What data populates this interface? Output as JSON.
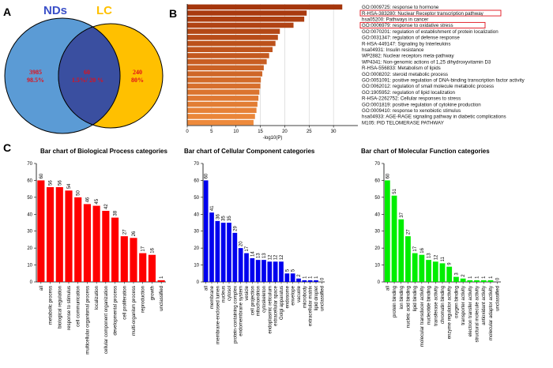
{
  "panels": [
    "A",
    "B",
    "C"
  ],
  "venn": {
    "left_title": "NDs",
    "right_title": "LC",
    "left_only": {
      "count": "3985",
      "percent": "98.5%"
    },
    "overlap": {
      "count": "60",
      "percent": "1.5%/ 20 %"
    },
    "right_only": {
      "count": "240",
      "percent": "80%"
    },
    "colors": {
      "left": "#5b9bd5",
      "right": "#ffc000",
      "overlap": "#3a4fa0",
      "title_left": "#3a4fc8",
      "title_right": "#ffc000",
      "numbers": "#e0101a"
    }
  },
  "chart_data": [
    {
      "id": "enrichment",
      "type": "bar",
      "orientation": "horizontal",
      "xlabel": "-log10(P)",
      "xlim": [
        0,
        35
      ],
      "xticks": [
        0,
        5,
        10,
        15,
        20,
        25,
        30
      ],
      "highlighted_indices": [
        1,
        3
      ],
      "colors": {
        "top": "#a5360c",
        "bottom": "#ee8a3c",
        "highlight_box": "#e0101a"
      },
      "categories": [
        "GO:0009725: response to hormone",
        "R-HSA-383280: Nuclear Receptor transcription pathway",
        "hsa05200: Pathways in cancer",
        "GO:0006979: response to oxidative stress",
        "GO:0070201: regulation of establishment of protein localization",
        "GO:0031347: regulation of defense response",
        "R-HSA-449147: Signaling by Interleukins",
        "hsa04931: Insulin resistance",
        "WP2882: Nuclear receptors meta-pathway",
        "WP4341: Non-genomic actions of 1,25 dihydroxyvitamin D3",
        "R-HSA-556833: Metabolism of lipids",
        "GO:0008202: steroid metabolic process",
        "GO:0051091: positive regulation of DNA-binding transcription factor activity",
        "GO:0062012: regulation of small molecule metabolic process",
        "GO:1905952: regulation of lipid localization",
        "R-HSA-2262752: Cellular responses to stress",
        "GO:0001819: positive regulation of cytokine production",
        "GO:0009410: response to xenobiotic stimulus",
        "hsa04933: AGE-RAGE signaling pathway in diabetic complications",
        "M105: PID TELOMERASE PATHWAY"
      ],
      "values": [
        31.8,
        24.5,
        24.0,
        21.8,
        19.0,
        18.6,
        18.1,
        17.5,
        16.8,
        16.3,
        15.7,
        15.4,
        15.1,
        15.0,
        14.8,
        14.6,
        14.4,
        14.2,
        13.9,
        13.6
      ]
    },
    {
      "id": "bp",
      "type": "bar",
      "title": "Bar chart of Biological Process categories",
      "color": "#ff0000",
      "ylim": [
        0,
        70
      ],
      "yticks": [
        0,
        10,
        20,
        30,
        40,
        50,
        60,
        70
      ],
      "categories": [
        "all",
        "metabolic process",
        "biological regulation",
        "response to stimulus",
        "cell communication",
        "multicellular organismal process",
        "localization",
        "cellular component organization",
        "developmental process",
        "cell proliferation",
        "multi-organism process",
        "reproduction",
        "growth",
        "unclassified"
      ],
      "values": [
        60,
        56,
        56,
        54,
        50,
        46,
        45,
        42,
        38,
        27,
        26,
        17,
        16,
        1
      ]
    },
    {
      "id": "cc",
      "type": "bar",
      "title": "Bar chart of Cellular Component categories",
      "color": "#0000ee",
      "ylim": [
        0,
        70
      ],
      "yticks": [
        0,
        10,
        20,
        30,
        40,
        50,
        60,
        70
      ],
      "categories": [
        "all",
        "membrane",
        "membrane-enclosed lumen",
        "nucleus",
        "cytosol",
        "protein-containing complex",
        "endomembrane system",
        "vesicle",
        "cell projection",
        "mitochondrion",
        "cytoskeleton",
        "endoplasmic reticulum",
        "extracellular space",
        "Golgi apparatus",
        "endosome",
        "envelope",
        "vacuole",
        "microbody",
        "extracellular matrix",
        "lipid droplet",
        "unclassified"
      ],
      "values": [
        60,
        41,
        36,
        35,
        35,
        29,
        20,
        17,
        14,
        13,
        13,
        12,
        12,
        12,
        5,
        5,
        2,
        1,
        1,
        1,
        0
      ]
    },
    {
      "id": "mf",
      "type": "bar",
      "title": "Bar chart of Molecular Function categories",
      "color": "#00ee00",
      "ylim": [
        0,
        70
      ],
      "yticks": [
        0,
        10,
        20,
        30,
        40,
        50,
        60,
        70
      ],
      "categories": [
        "all",
        "protein binding",
        "ion binding",
        "nucleic acid binding",
        "lipid binding",
        "molecular transducer activity",
        "nucleotide binding",
        "transferase activity",
        "chromatin binding",
        "enzyme regulator activity",
        "oxygen binding",
        "transporter activity",
        "electron transfer activity",
        "structural molecule activity",
        "antioxidant activity",
        "molecular adaptor activity",
        "unclassified"
      ],
      "values": [
        60,
        51,
        37,
        27,
        17,
        16,
        13,
        12,
        11,
        9,
        3,
        2,
        1,
        1,
        1,
        1,
        0
      ]
    }
  ]
}
